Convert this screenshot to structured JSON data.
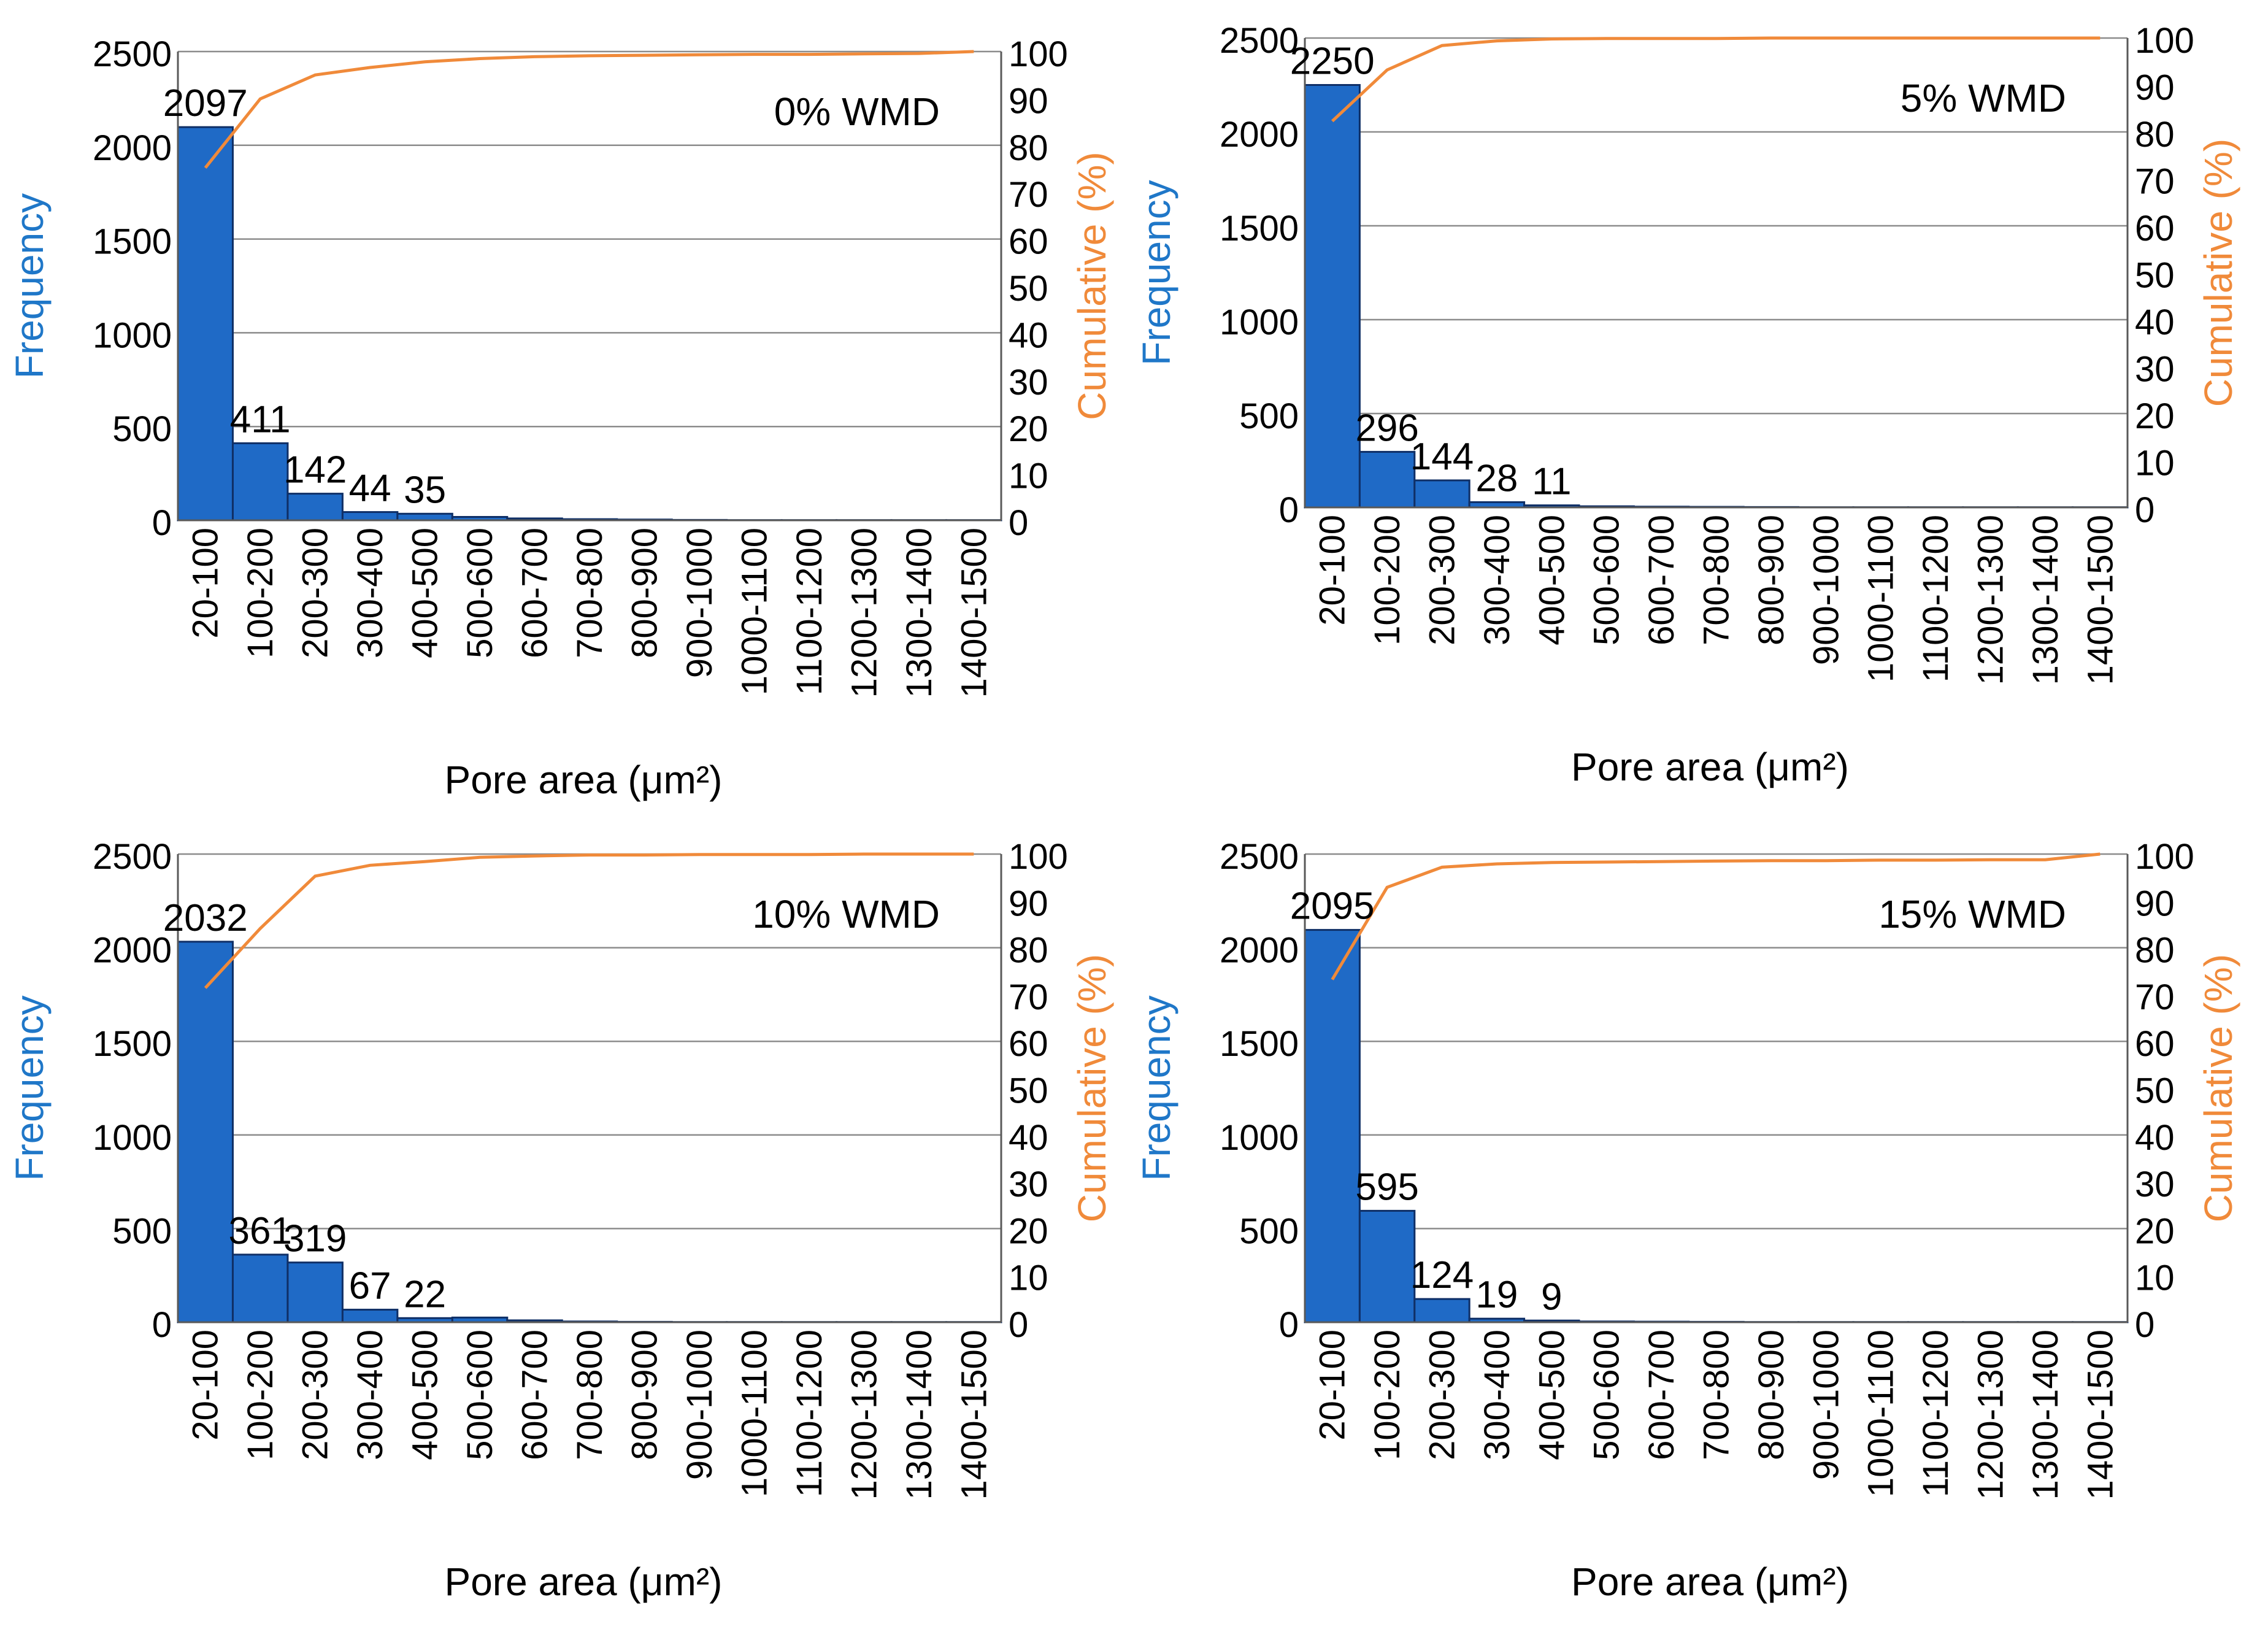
{
  "colors": {
    "bar": "#1F6AC6",
    "bar_edge": "#0F2F66",
    "cumulative_line": "#F08A3A",
    "frequency_label": "#1F77C8",
    "cumulative_label": "#F08A3A",
    "grid": "#8C8C8C",
    "text": "#000000"
  },
  "chart_data": [
    {
      "type": "bar",
      "title": "0% WMD",
      "categories": [
        "20-100",
        "100-200",
        "200-300",
        "300-400",
        "400-500",
        "500-600",
        "600-700",
        "700-800",
        "800-900",
        "900-1000",
        "1000-1100",
        "1100-1200",
        "1200-1300",
        "1300-1400",
        "1400-1500"
      ],
      "series": [
        {
          "name": "Frequency",
          "axis": "left",
          "values": [
            2097,
            411,
            142,
            44,
            35,
            18,
            10,
            6,
            4,
            2,
            1,
            1,
            1,
            1,
            1
          ]
        },
        {
          "name": "Cumulative (%)",
          "axis": "right",
          "type": "line",
          "values": [
            75.2,
            89.9,
            95.0,
            96.6,
            97.8,
            98.5,
            98.9,
            99.1,
            99.2,
            99.3,
            99.4,
            99.4,
            99.5,
            99.6,
            100
          ]
        }
      ],
      "data_labels": [
        "2097",
        "411",
        "142",
        "44",
        "35"
      ],
      "xlabel": "Pore area (μm²)",
      "ylabel": "Frequency",
      "y2label": "Cumulative (%)",
      "ylim": [
        0,
        2500
      ],
      "y2lim": [
        0,
        100
      ],
      "yticks": [
        0,
        500,
        1000,
        1500,
        2000,
        2500
      ],
      "y2ticks": [
        0,
        10,
        20,
        30,
        40,
        50,
        60,
        70,
        80,
        90,
        100
      ],
      "grid": true,
      "annotation_position": "top-right"
    },
    {
      "type": "bar",
      "title": "5% WMD",
      "categories": [
        "20-100",
        "100-200",
        "200-300",
        "300-400",
        "400-500",
        "500-600",
        "600-700",
        "700-800",
        "800-900",
        "900-1000",
        "1000-1100",
        "1100-1200",
        "1200-1300",
        "1300-1400",
        "1400-1500"
      ],
      "series": [
        {
          "name": "Frequency",
          "axis": "left",
          "values": [
            2250,
            296,
            144,
            28,
            11,
            6,
            4,
            3,
            2,
            1,
            1,
            1,
            1,
            1,
            1
          ]
        },
        {
          "name": "Cumulative (%)",
          "axis": "right",
          "type": "line",
          "values": [
            82.3,
            93.2,
            98.4,
            99.4,
            99.8,
            99.9,
            99.9,
            99.9,
            100,
            100,
            100,
            100,
            100,
            100,
            100
          ]
        }
      ],
      "data_labels": [
        "2250",
        "296",
        "144",
        "28",
        "11"
      ],
      "xlabel": "Pore area (μm²)",
      "ylabel": "Frequency",
      "y2label": "Cumulative (%)",
      "ylim": [
        0,
        2500
      ],
      "y2lim": [
        0,
        100
      ],
      "yticks": [
        0,
        500,
        1000,
        1500,
        2000,
        2500
      ],
      "y2ticks": [
        0,
        10,
        20,
        30,
        40,
        50,
        60,
        70,
        80,
        90,
        100
      ],
      "grid": true,
      "annotation_position": "top-right"
    },
    {
      "type": "bar",
      "title": "10% WMD",
      "categories": [
        "20-100",
        "100-200",
        "200-300",
        "300-400",
        "400-500",
        "500-600",
        "600-700",
        "700-800",
        "800-900",
        "900-1000",
        "1000-1100",
        "1100-1200",
        "1200-1300",
        "1300-1400",
        "1400-1500"
      ],
      "series": [
        {
          "name": "Frequency",
          "axis": "left",
          "values": [
            2032,
            361,
            319,
            67,
            22,
            25,
            10,
            4,
            2,
            1,
            1,
            1,
            1,
            1,
            1
          ]
        },
        {
          "name": "Cumulative (%)",
          "axis": "right",
          "type": "line",
          "values": [
            71.4,
            84.1,
            95.3,
            97.6,
            98.4,
            99.3,
            99.6,
            99.8,
            99.8,
            99.9,
            99.9,
            99.9,
            100,
            100,
            100
          ]
        }
      ],
      "data_labels": [
        "2032",
        "361",
        "319",
        "67",
        "22"
      ],
      "xlabel": "Pore area (μm²)",
      "ylabel": "Frequency",
      "y2label": "Cumulative (%)",
      "ylim": [
        0,
        2500
      ],
      "y2lim": [
        0,
        100
      ],
      "yticks": [
        0,
        500,
        1000,
        1500,
        2000,
        2500
      ],
      "y2ticks": [
        0,
        10,
        20,
        30,
        40,
        50,
        60,
        70,
        80,
        90,
        100
      ],
      "grid": true,
      "annotation_position": "top-right"
    },
    {
      "type": "bar",
      "title": "15% WMD",
      "categories": [
        "20-100",
        "100-200",
        "200-300",
        "300-400",
        "400-500",
        "500-600",
        "600-700",
        "700-800",
        "800-900",
        "900-1000",
        "1000-1100",
        "1100-1200",
        "1200-1300",
        "1300-1400",
        "1400-1500"
      ],
      "series": [
        {
          "name": "Frequency",
          "axis": "left",
          "values": [
            2095,
            595,
            124,
            19,
            9,
            4,
            3,
            2,
            1,
            1,
            1,
            1,
            1,
            1,
            1
          ]
        },
        {
          "name": "Cumulative (%)",
          "axis": "right",
          "type": "line",
          "values": [
            73.2,
            92.9,
            97.2,
            97.9,
            98.2,
            98.3,
            98.4,
            98.5,
            98.6,
            98.6,
            98.7,
            98.7,
            98.8,
            98.8,
            100
          ]
        }
      ],
      "data_labels": [
        "2095",
        "595",
        "124",
        "19",
        "9"
      ],
      "xlabel": "Pore area (μm²)",
      "ylabel": "Frequency",
      "y2label": "Cumulative (%)",
      "ylim": [
        0,
        2500
      ],
      "y2lim": [
        0,
        100
      ],
      "yticks": [
        0,
        500,
        1000,
        1500,
        2000,
        2500
      ],
      "y2ticks": [
        0,
        10,
        20,
        30,
        40,
        50,
        60,
        70,
        80,
        90,
        100
      ],
      "grid": true,
      "annotation_position": "top-right"
    }
  ]
}
